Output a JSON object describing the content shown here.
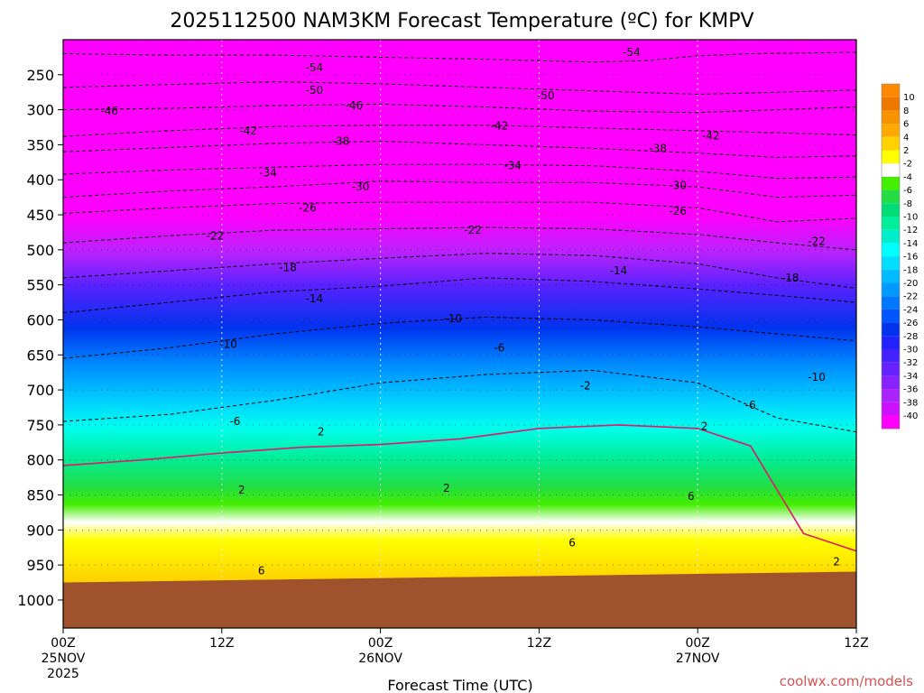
{
  "chart_data": {
    "type": "heatmap",
    "title": "2025112500 NAM3KM Forecast Temperature (ºC) for KMPV",
    "xlabel": "Forecast Time (UTC)",
    "ylabel": "",
    "source": "coolwx.com/models",
    "x_range_hours": [
      0,
      60
    ],
    "x_ticks": [
      {
        "hour": 0,
        "label": "00Z",
        "date": "25NOV",
        "year": "2025"
      },
      {
        "hour": 12,
        "label": "12Z",
        "date": "",
        "year": ""
      },
      {
        "hour": 24,
        "label": "00Z",
        "date": "26NOV",
        "year": ""
      },
      {
        "hour": 36,
        "label": "12Z",
        "date": "",
        "year": ""
      },
      {
        "hour": 48,
        "label": "00Z",
        "date": "27NOV",
        "year": ""
      },
      {
        "hour": 60,
        "label": "12Z",
        "date": "",
        "year": ""
      }
    ],
    "y_range_hpa": [
      200,
      1040
    ],
    "y_ticks": [
      250,
      300,
      350,
      400,
      450,
      500,
      550,
      600,
      650,
      700,
      750,
      800,
      850,
      900,
      950,
      1000
    ],
    "ground_pressure_hpa": 975,
    "colorbar_levels": [
      {
        "label": "10",
        "color": "#ee7700"
      },
      {
        "label": "8",
        "color": "#f79200"
      },
      {
        "label": "6",
        "color": "#ffaa00"
      },
      {
        "label": "4",
        "color": "#ffd200"
      },
      {
        "label": "2",
        "color": "#ffff00"
      },
      {
        "label": "-2",
        "color": "#ffffff"
      },
      {
        "label": "-4",
        "color": "#44ee00"
      },
      {
        "label": "-6",
        "color": "#22dd44"
      },
      {
        "label": "-8",
        "color": "#00dd77"
      },
      {
        "label": "-10",
        "color": "#00ee99"
      },
      {
        "label": "-12",
        "color": "#00eecc"
      },
      {
        "label": "-14",
        "color": "#00ffff"
      },
      {
        "label": "-16",
        "color": "#00ddff"
      },
      {
        "label": "-18",
        "color": "#00bbff"
      },
      {
        "label": "-20",
        "color": "#0099ff"
      },
      {
        "label": "-22",
        "color": "#0077ff"
      },
      {
        "label": "-24",
        "color": "#0055ff"
      },
      {
        "label": "-26",
        "color": "#0033ee"
      },
      {
        "label": "-28",
        "color": "#2222ff"
      },
      {
        "label": "-30",
        "color": "#4422ff"
      },
      {
        "label": "-32",
        "color": "#6622ff"
      },
      {
        "label": "-34",
        "color": "#8822ff"
      },
      {
        "label": "-36",
        "color": "#aa22ff"
      },
      {
        "label": "-38",
        "color": "#cc11ff"
      },
      {
        "label": "-40",
        "color": "#ff00ff"
      }
    ],
    "color_max": "#ff8800",
    "ground_color": "#a0522d",
    "freezing_line_color": "#e0186c",
    "isotherms": [
      {
        "value": -54,
        "label": "-54",
        "points": [
          [
            0,
            220
          ],
          [
            8,
            222
          ],
          [
            16,
            222
          ],
          [
            24,
            225
          ],
          [
            32,
            228
          ],
          [
            40,
            232
          ],
          [
            44,
            230
          ],
          [
            48,
            223
          ],
          [
            52,
            220
          ],
          [
            60,
            218
          ]
        ]
      },
      {
        "value": -50,
        "label": "-50",
        "points": [
          [
            0,
            268
          ],
          [
            8,
            264
          ],
          [
            16,
            260
          ],
          [
            24,
            263
          ],
          [
            32,
            268
          ],
          [
            40,
            273
          ],
          [
            48,
            278
          ],
          [
            52,
            276
          ],
          [
            60,
            272
          ]
        ]
      },
      {
        "value": -46,
        "label": "-46",
        "points": [
          [
            0,
            300
          ],
          [
            8,
            298
          ],
          [
            16,
            294
          ],
          [
            24,
            292
          ],
          [
            32,
            296
          ],
          [
            40,
            302
          ],
          [
            48,
            304
          ],
          [
            54,
            300
          ],
          [
            60,
            296
          ]
        ]
      },
      {
        "value": -42,
        "label": "-42",
        "points": [
          [
            0,
            338
          ],
          [
            8,
            330
          ],
          [
            16,
            324
          ],
          [
            24,
            322
          ],
          [
            32,
            322
          ],
          [
            40,
            326
          ],
          [
            48,
            330
          ],
          [
            54,
            333
          ],
          [
            60,
            336
          ]
        ]
      },
      {
        "value": -38,
        "label": "-38",
        "points": [
          [
            0,
            360
          ],
          [
            8,
            354
          ],
          [
            16,
            348
          ],
          [
            24,
            345
          ],
          [
            32,
            350
          ],
          [
            40,
            355
          ],
          [
            48,
            362
          ],
          [
            54,
            368
          ],
          [
            60,
            366
          ]
        ]
      },
      {
        "value": -34,
        "label": "-34",
        "points": [
          [
            0,
            392
          ],
          [
            8,
            386
          ],
          [
            16,
            382
          ],
          [
            24,
            378
          ],
          [
            32,
            378
          ],
          [
            40,
            380
          ],
          [
            48,
            388
          ],
          [
            54,
            398
          ],
          [
            60,
            396
          ]
        ]
      },
      {
        "value": -30,
        "label": "-30",
        "points": [
          [
            0,
            425
          ],
          [
            8,
            416
          ],
          [
            16,
            410
          ],
          [
            24,
            402
          ],
          [
            32,
            404
          ],
          [
            40,
            404
          ],
          [
            48,
            410
          ],
          [
            54,
            425
          ],
          [
            60,
            422
          ]
        ]
      },
      {
        "value": -26,
        "label": "-26",
        "points": [
          [
            0,
            448
          ],
          [
            8,
            440
          ],
          [
            16,
            434
          ],
          [
            24,
            432
          ],
          [
            32,
            432
          ],
          [
            40,
            432
          ],
          [
            48,
            440
          ],
          [
            54,
            460
          ],
          [
            60,
            455
          ]
        ]
      },
      {
        "value": -22,
        "label": "-22",
        "points": [
          [
            0,
            490
          ],
          [
            8,
            480
          ],
          [
            16,
            472
          ],
          [
            24,
            470
          ],
          [
            32,
            468
          ],
          [
            40,
            470
          ],
          [
            48,
            478
          ],
          [
            54,
            490
          ],
          [
            60,
            500
          ]
        ]
      },
      {
        "value": -18,
        "label": "-18",
        "points": [
          [
            0,
            540
          ],
          [
            8,
            530
          ],
          [
            16,
            520
          ],
          [
            24,
            512
          ],
          [
            32,
            505
          ],
          [
            40,
            508
          ],
          [
            48,
            520
          ],
          [
            54,
            540
          ],
          [
            60,
            555
          ]
        ]
      },
      {
        "value": -14,
        "label": "-14",
        "points": [
          [
            0,
            590
          ],
          [
            8,
            575
          ],
          [
            16,
            560
          ],
          [
            24,
            552
          ],
          [
            32,
            540
          ],
          [
            40,
            545
          ],
          [
            48,
            556
          ],
          [
            54,
            565
          ],
          [
            60,
            575
          ]
        ]
      },
      {
        "value": -10,
        "label": "-10",
        "points": [
          [
            0,
            655
          ],
          [
            8,
            640
          ],
          [
            16,
            620
          ],
          [
            24,
            605
          ],
          [
            32,
            596
          ],
          [
            40,
            600
          ],
          [
            48,
            610
          ],
          [
            54,
            620
          ],
          [
            60,
            630
          ]
        ]
      },
      {
        "value": -6,
        "label": "-6",
        "points": [
          [
            0,
            745
          ],
          [
            8,
            735
          ],
          [
            16,
            715
          ],
          [
            24,
            690
          ],
          [
            32,
            678
          ],
          [
            40,
            672
          ],
          [
            48,
            690
          ],
          [
            54,
            740
          ],
          [
            60,
            760
          ]
        ]
      }
    ],
    "freezing_line": [
      [
        0,
        808
      ],
      [
        6,
        800
      ],
      [
        12,
        790
      ],
      [
        18,
        782
      ],
      [
        24,
        778
      ],
      [
        30,
        770
      ],
      [
        36,
        755
      ],
      [
        42,
        750
      ],
      [
        48,
        755
      ],
      [
        52,
        780
      ],
      [
        56,
        905
      ],
      [
        60,
        930
      ]
    ],
    "contour_labels": [
      {
        "text": "-54",
        "hour": 43,
        "p": 218
      },
      {
        "text": "-54",
        "hour": 19,
        "p": 240
      },
      {
        "text": "-50",
        "hour": 19,
        "p": 272
      },
      {
        "text": "-50",
        "hour": 36.5,
        "p": 280
      },
      {
        "text": "-46",
        "hour": 3.5,
        "p": 302
      },
      {
        "text": "-46",
        "hour": 22,
        "p": 294
      },
      {
        "text": "-42",
        "hour": 14,
        "p": 330
      },
      {
        "text": "-42",
        "hour": 33,
        "p": 323
      },
      {
        "text": "-42",
        "hour": 49,
        "p": 337
      },
      {
        "text": "-38",
        "hour": 21,
        "p": 345
      },
      {
        "text": "-38",
        "hour": 45,
        "p": 355
      },
      {
        "text": "-34",
        "hour": 15.5,
        "p": 390
      },
      {
        "text": "-34",
        "hour": 34,
        "p": 380
      },
      {
        "text": "-30",
        "hour": 22.5,
        "p": 410
      },
      {
        "text": "-30",
        "hour": 46.5,
        "p": 408
      },
      {
        "text": "-26",
        "hour": 18.5,
        "p": 440
      },
      {
        "text": "-26",
        "hour": 46.5,
        "p": 445
      },
      {
        "text": "-22",
        "hour": 11.5,
        "p": 480
      },
      {
        "text": "-22",
        "hour": 31,
        "p": 472
      },
      {
        "text": "-22",
        "hour": 57,
        "p": 488
      },
      {
        "text": "-18",
        "hour": 17,
        "p": 525
      },
      {
        "text": "-18",
        "hour": 55,
        "p": 540
      },
      {
        "text": "-14",
        "hour": 19,
        "p": 570
      },
      {
        "text": "-14",
        "hour": 42,
        "p": 530
      },
      {
        "text": "-10",
        "hour": 12.5,
        "p": 635
      },
      {
        "text": "-10",
        "hour": 29.5,
        "p": 598
      },
      {
        "text": "-10",
        "hour": 57,
        "p": 682
      },
      {
        "text": "-6",
        "hour": 13,
        "p": 745
      },
      {
        "text": "-6",
        "hour": 33,
        "p": 640
      },
      {
        "text": "-6",
        "hour": 52,
        "p": 722
      },
      {
        "text": "-2",
        "hour": 39.5,
        "p": 694
      },
      {
        "text": "2",
        "hour": 19.5,
        "p": 760
      },
      {
        "text": "2",
        "hour": 48.5,
        "p": 752
      },
      {
        "text": "2",
        "hour": 13.5,
        "p": 843
      },
      {
        "text": "2",
        "hour": 29,
        "p": 840
      },
      {
        "text": "2",
        "hour": 58.5,
        "p": 945
      },
      {
        "text": "6",
        "hour": 47.5,
        "p": 852
      },
      {
        "text": "6",
        "hour": 38.5,
        "p": 918
      },
      {
        "text": "6",
        "hour": 15,
        "p": 958
      }
    ]
  }
}
